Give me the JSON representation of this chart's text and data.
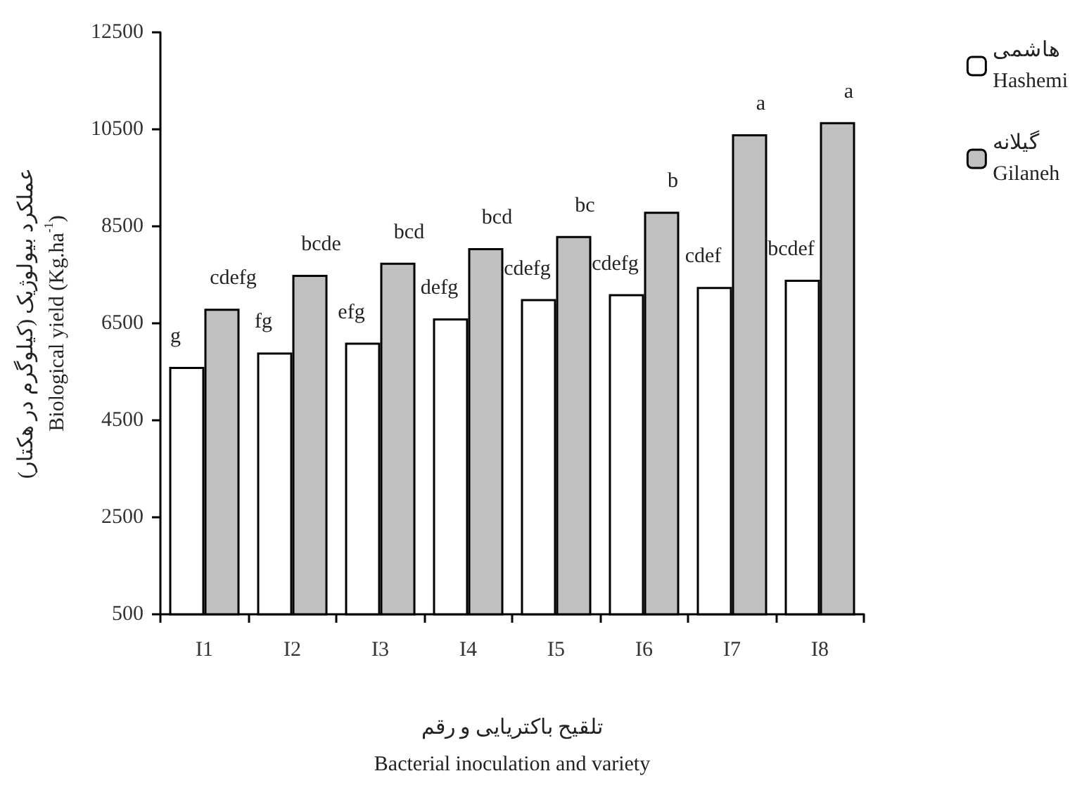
{
  "chart_data": {
    "type": "bar",
    "ylabel": "عملکرد بیولوژیک (کیلوگرم در هکتار)\nBiological yield (Kg.ha$^{-1}$)",
    "xlabel": "تلقیح باکتریایی و رقم\nBacterial inoculation and variety",
    "categories": [
      "I1",
      "I2",
      "I3",
      "I4",
      "I5",
      "I6",
      "I7",
      "I8"
    ],
    "series": [
      {
        "name": "هاشمی\nHashemi",
        "color": "#ffffff",
        "values": [
          5600,
          5900,
          6100,
          6600,
          7000,
          7100,
          7250,
          7400
        ],
        "value_labels": [
          "g",
          "fg",
          "efg",
          "defg",
          "cdefg",
          "cdefg",
          "cdef",
          "bcdef"
        ]
      },
      {
        "name": "گیلانه\nGilaneh",
        "color": "#c0c0c0",
        "values": [
          6800,
          7500,
          7750,
          8050,
          8300,
          8800,
          10400,
          10650
        ],
        "value_labels": [
          "cdefg",
          "bcde",
          "bcd",
          "bcd",
          "bc",
          "b",
          "a",
          "a"
        ]
      }
    ],
    "ylim": [
      500,
      12500
    ],
    "yticks": [
      500,
      2500,
      4500,
      6500,
      8500,
      10500,
      12500
    ],
    "grid": false,
    "legend": "top right"
  }
}
